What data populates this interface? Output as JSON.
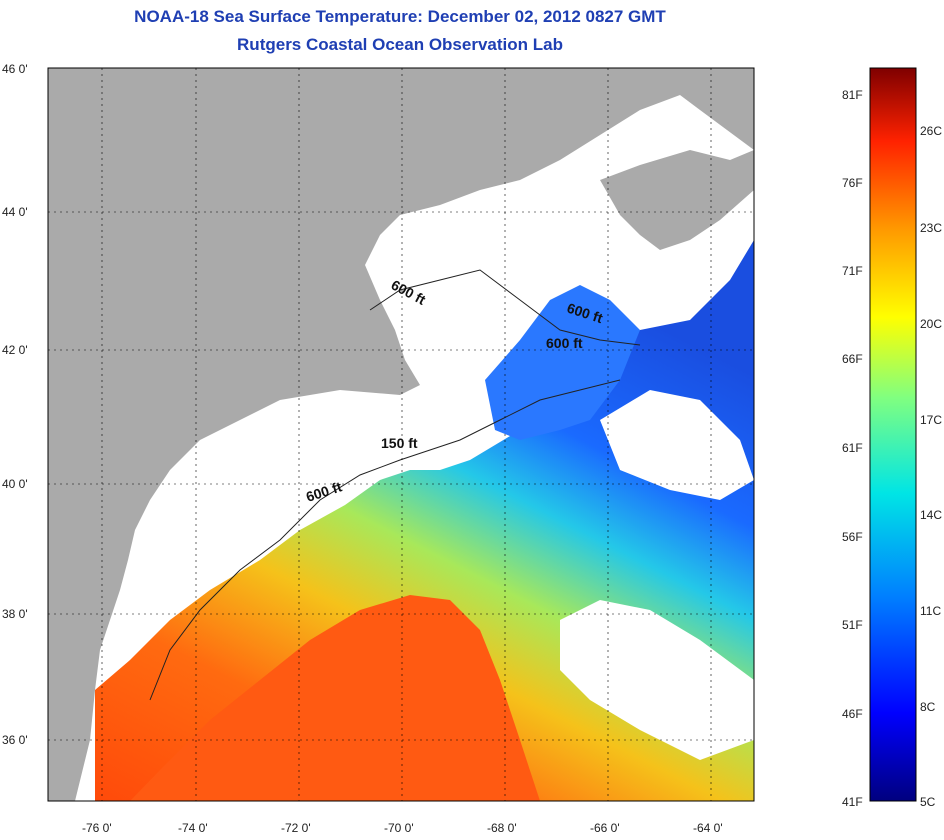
{
  "title": "NOAA-18 Sea Surface Temperature:  December 02, 2012 0827 GMT",
  "subtitle": "Rutgers Coastal Ocean Observation Lab",
  "lat_labels": [
    "46 0'",
    "44 0'",
    "42 0'",
    "40 0'",
    "38 0'",
    "36 0'"
  ],
  "lon_labels": [
    "-76 0'",
    "-74 0'",
    "-72 0'",
    "-70 0'",
    "-68 0'",
    "-66 0'",
    "-64 0'"
  ],
  "contours": [
    "600 ft",
    "600 ft",
    "600 ft",
    "150 ft",
    "600 ft"
  ],
  "colorbar": {
    "f_labels": [
      "81F",
      "76F",
      "71F",
      "66F",
      "61F",
      "56F",
      "51F",
      "46F",
      "41F"
    ],
    "c_labels": [
      "26C",
      "23C",
      "20C",
      "17C",
      "14C",
      "11C",
      "8C",
      "5C"
    ],
    "colors": [
      "#7f0000",
      "#cc0000",
      "#ff3300",
      "#ff8000",
      "#ffcc00",
      "#d4f000",
      "#80ff80",
      "#00e0e0",
      "#00a0ff",
      "#0050ff",
      "#0000cc",
      "#00007f"
    ]
  },
  "colors": {
    "land": "#aaaaaa",
    "cloud": "#ffffff",
    "title": "#1f3fb3"
  }
}
